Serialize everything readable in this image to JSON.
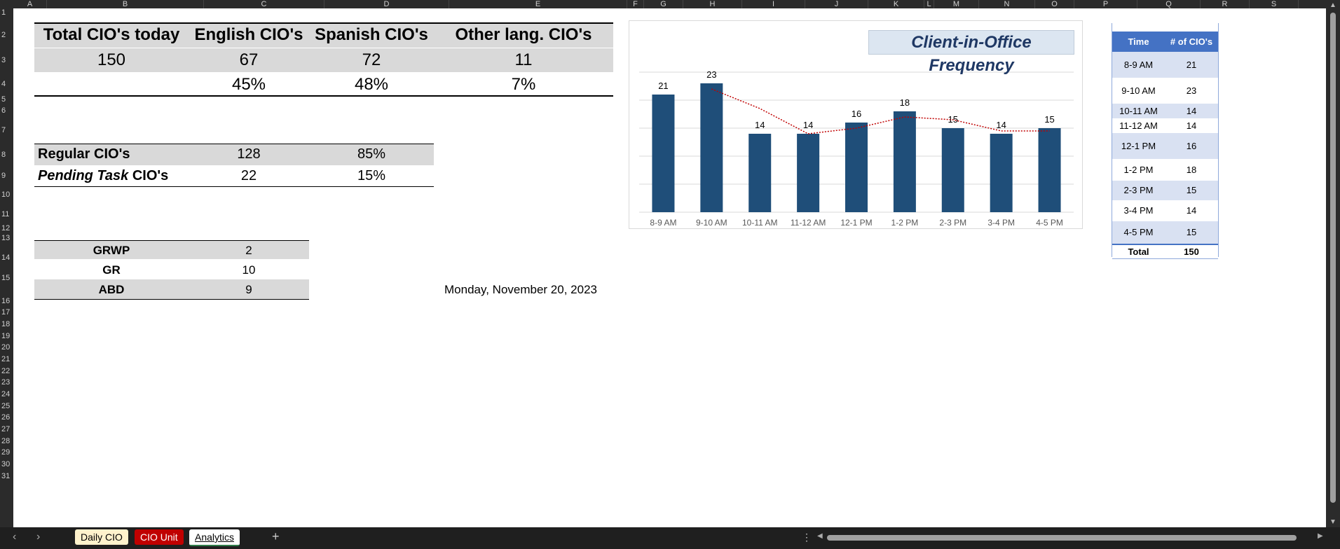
{
  "columns": [
    "A",
    "B",
    "C",
    "D",
    "E",
    "F",
    "G",
    "H",
    "I",
    "J",
    "K",
    "L",
    "M",
    "N",
    "O",
    "P",
    "Q",
    "R",
    "S"
  ],
  "rows": [
    "1",
    "2",
    "3",
    "4",
    "5",
    "6",
    "7",
    "8",
    "9",
    "10",
    "11",
    "12",
    "13",
    "14",
    "15",
    "16",
    "17",
    "18",
    "19",
    "20",
    "21",
    "22",
    "23",
    "24",
    "25",
    "26",
    "27",
    "28",
    "29",
    "30",
    "31"
  ],
  "summary": {
    "headers": [
      "Total CIO's today",
      "English CIO's",
      "Spanish CIO's",
      "Other lang. CIO's"
    ],
    "counts": [
      "150",
      "67",
      "72",
      "11"
    ],
    "percents": [
      "45%",
      "48%",
      "7%"
    ]
  },
  "regular": {
    "rows": [
      {
        "label": "Regular CIO's",
        "count": "128",
        "pct": "85%"
      },
      {
        "label_em": "Pending Task",
        "label_rest": " CIO's",
        "count": "22",
        "pct": "15%"
      }
    ]
  },
  "codes": [
    {
      "label": "GRWP",
      "value": "2"
    },
    {
      "label": "GR",
      "value": "10"
    },
    {
      "label": "ABD",
      "value": "9"
    }
  ],
  "date": "Monday, November 20, 2023",
  "chart_data": {
    "type": "bar",
    "title": "Client-in-Office Frequency",
    "categories": [
      "8-9 AM",
      "9-10 AM",
      "10-11 AM",
      "11-12 AM",
      "12-1 PM",
      "1-2 PM",
      "2-3 PM",
      "3-4 PM",
      "4-5 PM"
    ],
    "values": [
      21,
      23,
      14,
      14,
      16,
      18,
      15,
      14,
      15
    ],
    "trendline": "dotted moving average",
    "ylim": [
      0,
      25
    ],
    "grid": true,
    "bar_color": "#1f4e79",
    "trend_color": "#c00000"
  },
  "freq_table": {
    "header_time": "Time",
    "header_count": "# of CIO's",
    "rows": [
      {
        "time": "8-9 AM",
        "count": "21"
      },
      {
        "time": "9-10 AM",
        "count": "23"
      },
      {
        "time": "10-11 AM",
        "count": "14"
      },
      {
        "time": "11-12 AM",
        "count": "14"
      },
      {
        "time": "12-1 PM",
        "count": "16"
      },
      {
        "time": "1-2 PM",
        "count": "18"
      },
      {
        "time": "2-3 PM",
        "count": "15"
      },
      {
        "time": "3-4 PM",
        "count": "14"
      },
      {
        "time": "4-5 PM",
        "count": "15"
      }
    ],
    "total_label": "Total",
    "total_value": "150"
  },
  "tabs": [
    {
      "label": "Daily CIO",
      "bg": "#fff2cc",
      "color": "#000"
    },
    {
      "label": "CIO Unit",
      "bg": "#c00000",
      "color": "#fff"
    },
    {
      "label": "Analytics",
      "bg": "#ffffff",
      "color": "#000"
    }
  ],
  "icons": {
    "prev": "chevron-left-icon",
    "next": "chevron-right-icon",
    "add": "plus-icon",
    "more": "more-vertical-icon"
  }
}
